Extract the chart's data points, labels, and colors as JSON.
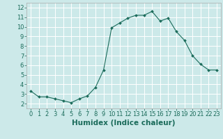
{
  "x": [
    0,
    1,
    2,
    3,
    4,
    5,
    6,
    7,
    8,
    9,
    10,
    11,
    12,
    13,
    14,
    15,
    16,
    17,
    18,
    19,
    20,
    21,
    22,
    23
  ],
  "y": [
    3.3,
    2.7,
    2.7,
    2.5,
    2.3,
    2.1,
    2.5,
    2.8,
    3.7,
    5.5,
    9.9,
    10.4,
    10.9,
    11.2,
    11.2,
    11.6,
    10.6,
    10.9,
    9.5,
    8.6,
    7.0,
    6.1,
    5.5,
    5.5
  ],
  "line_color": "#1a6b5a",
  "marker": "D",
  "marker_size": 2.0,
  "bg_color": "#cce9e9",
  "grid_color": "#ffffff",
  "xlabel": "Humidex (Indice chaleur)",
  "xlim": [
    -0.5,
    23.5
  ],
  "ylim": [
    1.5,
    12.5
  ],
  "yticks": [
    2,
    3,
    4,
    5,
    6,
    7,
    8,
    9,
    10,
    11,
    12
  ],
  "xticks": [
    0,
    1,
    2,
    3,
    4,
    5,
    6,
    7,
    8,
    9,
    10,
    11,
    12,
    13,
    14,
    15,
    16,
    17,
    18,
    19,
    20,
    21,
    22,
    23
  ],
  "tick_label_fontsize": 6.0,
  "xlabel_fontsize": 7.5,
  "axis_label_color": "#1a6b5a",
  "spine_color": "#aaaaaa"
}
